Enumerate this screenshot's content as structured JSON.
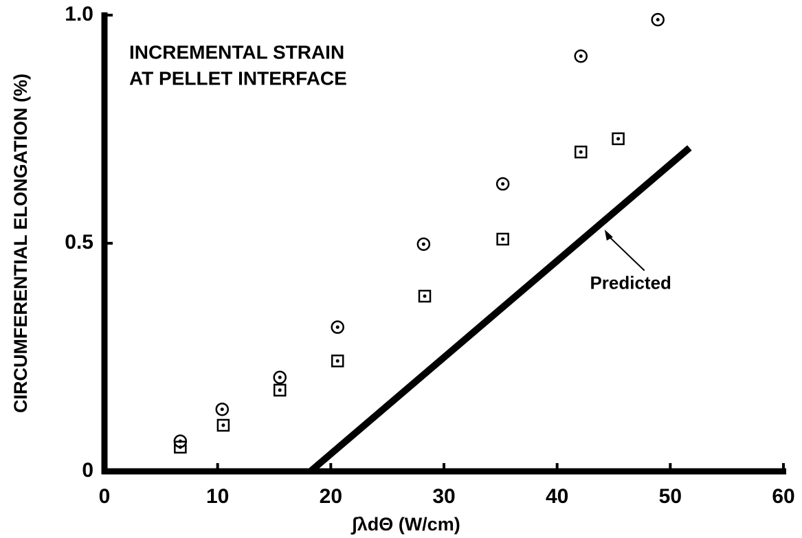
{
  "chart_data": {
    "type": "scatter",
    "title": [
      "INCREMENTAL STRAIN",
      "AT PELLET INTERFACE"
    ],
    "xlabel": "∫λdΘ (W/cm)",
    "ylabel": "CIRCUMFERENTIAL ELONGATION (%)",
    "xlim": [
      0,
      60
    ],
    "xticks": [
      0,
      10,
      20,
      30,
      40,
      50,
      60
    ],
    "ylim": [
      0,
      1
    ],
    "yticks": [
      0,
      0.5,
      {
        "value": 1,
        "label": "1.0"
      }
    ],
    "color": "#000000",
    "series": [
      {
        "marker": "circle",
        "x": [
          6.7,
          10.4,
          15.5,
          20.6,
          28.2,
          35.2,
          42.1,
          48.9
        ],
        "values": [
          0.066,
          0.136,
          0.206,
          0.316,
          0.498,
          0.63,
          0.91,
          0.99
        ]
      },
      {
        "marker": "square",
        "x": [
          6.7,
          10.5,
          15.5,
          20.6,
          28.3,
          35.2,
          42.1,
          45.4
        ],
        "values": [
          0.053,
          0.101,
          0.178,
          0.242,
          0.384,
          0.509,
          0.7,
          0.729
        ]
      }
    ],
    "lines": [
      {
        "x": [
          18.2,
          51.7
        ],
        "values": [
          0,
          0.709
        ]
      }
    ],
    "annotation": {
      "text": "Predicted",
      "x": 46.5,
      "y": 0.41,
      "arrow_x": 44.2,
      "arrow_y": 0.53
    }
  }
}
